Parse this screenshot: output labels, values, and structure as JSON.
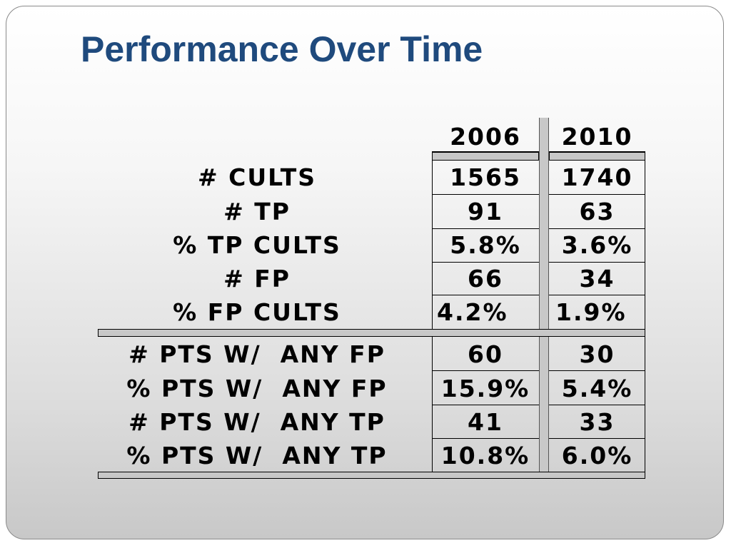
{
  "title": "Performance Over Time",
  "columns": [
    "2006",
    "2010"
  ],
  "rows": [
    {
      "label": "# CULTS",
      "v2006": "1565",
      "v2010": "1740"
    },
    {
      "label": "# TP",
      "v2006": "91",
      "v2010": "63"
    },
    {
      "label": "% TP CULTS",
      "v2006": "5.8%",
      "v2010": "3.6%"
    },
    {
      "label": "# FP",
      "v2006": "66",
      "v2010": "34"
    },
    {
      "label": "% FP CULTS",
      "v2006": "4.2%",
      "v2010": "1.9%"
    },
    {
      "label": "# PTS W/  ANY FP",
      "v2006": "60",
      "v2010": "30"
    },
    {
      "label": "% PTS W/  ANY FP",
      "v2006": "15.9%",
      "v2010": "5.4%"
    },
    {
      "label": "# PTS W/  ANY TP",
      "v2006": "41",
      "v2010": "33"
    },
    {
      "label": "% PTS W/  ANY TP",
      "v2006": "10.8%",
      "v2010": "6.0%"
    }
  ]
}
